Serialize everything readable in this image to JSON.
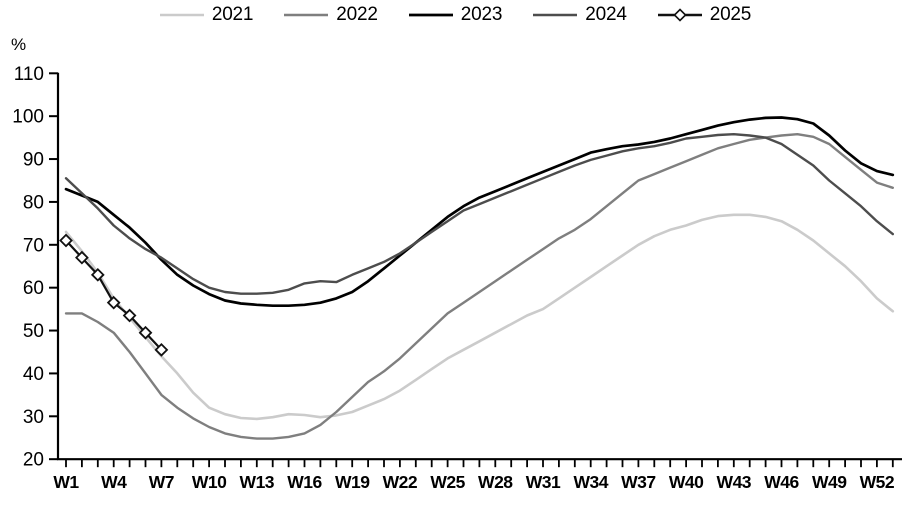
{
  "chart_data": {
    "type": "line",
    "title": "",
    "ylabel": "%",
    "xlabel": "",
    "ylim": [
      20,
      110
    ],
    "yticks": [
      20,
      30,
      40,
      50,
      60,
      70,
      80,
      90,
      100,
      110
    ],
    "x_tick_labels": [
      "W1",
      "W4",
      "W7",
      "W10",
      "W13",
      "W16",
      "W19",
      "W22",
      "W25",
      "W28",
      "W31",
      "W34",
      "W37",
      "W40",
      "W43",
      "W46",
      "W49",
      "W52"
    ],
    "weeks_total": 53,
    "grid": false,
    "legend_position": "top",
    "axis_color": "#000000",
    "series": [
      {
        "name": "2021",
        "color": "#cbcbcb",
        "stroke_width": 2.6,
        "marker": null,
        "start_week": 1,
        "values": [
          73,
          68.5,
          63.5,
          57.5,
          53,
          48.5,
          44,
          40,
          35.5,
          32,
          30.5,
          29.6,
          29.4,
          29.8,
          30.5,
          30.3,
          29.8,
          30.2,
          31,
          32.5,
          34,
          36,
          38.5,
          41,
          43.5,
          45.5,
          47.5,
          49.5,
          51.5,
          53.5,
          55,
          57.5,
          60,
          62.5,
          65,
          67.5,
          70,
          72,
          73.5,
          74.5,
          75.8,
          76.7,
          77,
          77,
          76.5,
          75.5,
          73.5,
          71,
          68,
          65,
          61.5,
          57.5,
          54.5
        ]
      },
      {
        "name": "2022",
        "color": "#7f7f7f",
        "stroke_width": 2.4,
        "marker": null,
        "start_week": 1,
        "values": [
          54,
          54,
          52,
          49.5,
          45,
          40,
          35,
          32,
          29.5,
          27.5,
          26,
          25.2,
          24.8,
          24.8,
          25.2,
          26,
          28,
          31,
          34.5,
          38,
          40.5,
          43.5,
          47,
          50.5,
          54,
          56.5,
          59,
          61.5,
          64,
          66.5,
          69,
          71.5,
          73.5,
          76,
          79,
          82,
          85,
          86.5,
          88,
          89.5,
          91,
          92.5,
          93.5,
          94.5,
          95,
          95.5,
          95.8,
          95.2,
          93.5,
          90.5,
          87.5,
          84.5,
          83.3
        ]
      },
      {
        "name": "2023",
        "color": "#000000",
        "stroke_width": 2.7,
        "marker": null,
        "start_week": 1,
        "values": [
          83,
          81.5,
          80,
          77,
          74,
          70.5,
          66.5,
          63,
          60.5,
          58.5,
          57,
          56.3,
          56,
          55.8,
          55.8,
          56,
          56.5,
          57.5,
          59,
          61.5,
          64.5,
          67.5,
          70.5,
          73.5,
          76.5,
          79,
          81,
          82.5,
          84,
          85.5,
          87,
          88.5,
          90,
          91.5,
          92.3,
          93,
          93.4,
          94,
          94.8,
          95.8,
          96.8,
          97.8,
          98.6,
          99.2,
          99.6,
          99.7,
          99.3,
          98.3,
          95.5,
          92,
          89,
          87.2,
          86.3
        ]
      },
      {
        "name": "2024",
        "color": "#4d4d4d",
        "stroke_width": 2.4,
        "marker": null,
        "start_week": 1,
        "values": [
          85.5,
          82,
          78.5,
          74.5,
          71.5,
          69,
          67,
          64.5,
          62,
          60,
          59,
          58.6,
          58.6,
          58.8,
          59.5,
          61,
          61.5,
          61.3,
          63,
          64.5,
          66,
          68,
          70.5,
          73,
          75.5,
          78,
          79.5,
          81,
          82.5,
          84,
          85.5,
          87,
          88.5,
          89.8,
          90.8,
          91.8,
          92.5,
          93,
          93.8,
          94.8,
          95.2,
          95.6,
          95.8,
          95.5,
          95,
          93.5,
          91,
          88.5,
          85,
          82,
          79,
          75.5,
          72.5
        ]
      },
      {
        "name": "2025",
        "color": "#111111",
        "stroke_width": 2.2,
        "marker": "diamond",
        "marker_fill": "#ffffff",
        "start_week": 1,
        "values": [
          71,
          67,
          63,
          56.5,
          53.5,
          49.5,
          45.5
        ]
      }
    ]
  }
}
